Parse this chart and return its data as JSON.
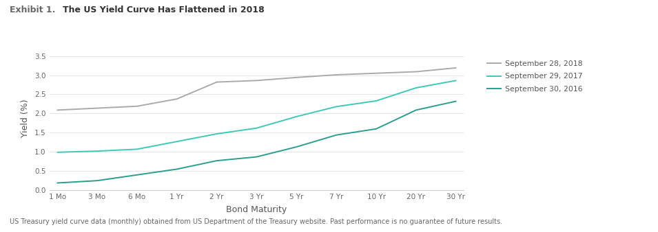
{
  "title_exhibit": "Exhibit 1.",
  "title_main": "The US Yield Curve Has Flattened in 2018",
  "xlabel": "Bond Maturity",
  "ylabel": "Yield (%)",
  "footnote": "US Treasury yield curve data (monthly) obtained from US Department of the Treasury website. Past performance is no guarantee of future results.",
  "x_labels": [
    "1 Mo",
    "3 Mo",
    "6 Mo",
    "1 Yr",
    "2 Yr",
    "3 Yr",
    "5 Yr",
    "7 Yr",
    "10 Yr",
    "20 Yr",
    "30 Yr"
  ],
  "series": [
    {
      "label": "September 28, 2018",
      "color": "#aaaaaa",
      "values": [
        2.09,
        2.14,
        2.19,
        2.38,
        2.82,
        2.86,
        2.94,
        3.01,
        3.05,
        3.09,
        3.19
      ]
    },
    {
      "label": "September 29, 2017",
      "color": "#3ec8b8",
      "values": [
        0.99,
        1.02,
        1.07,
        1.27,
        1.47,
        1.62,
        1.92,
        2.18,
        2.33,
        2.67,
        2.86
      ]
    },
    {
      "label": "September 30, 2016",
      "color": "#2a9d8f",
      "values": [
        0.19,
        0.25,
        0.4,
        0.55,
        0.77,
        0.87,
        1.13,
        1.44,
        1.6,
        2.09,
        2.32
      ]
    }
  ],
  "ylim": [
    0.0,
    3.75
  ],
  "yticks": [
    0.0,
    0.5,
    1.0,
    1.5,
    2.0,
    2.5,
    3.0,
    3.5
  ],
  "background_color": "#ffffff",
  "top_bar_color": "#999999",
  "fig_width": 9.55,
  "fig_height": 3.38,
  "dpi": 100
}
